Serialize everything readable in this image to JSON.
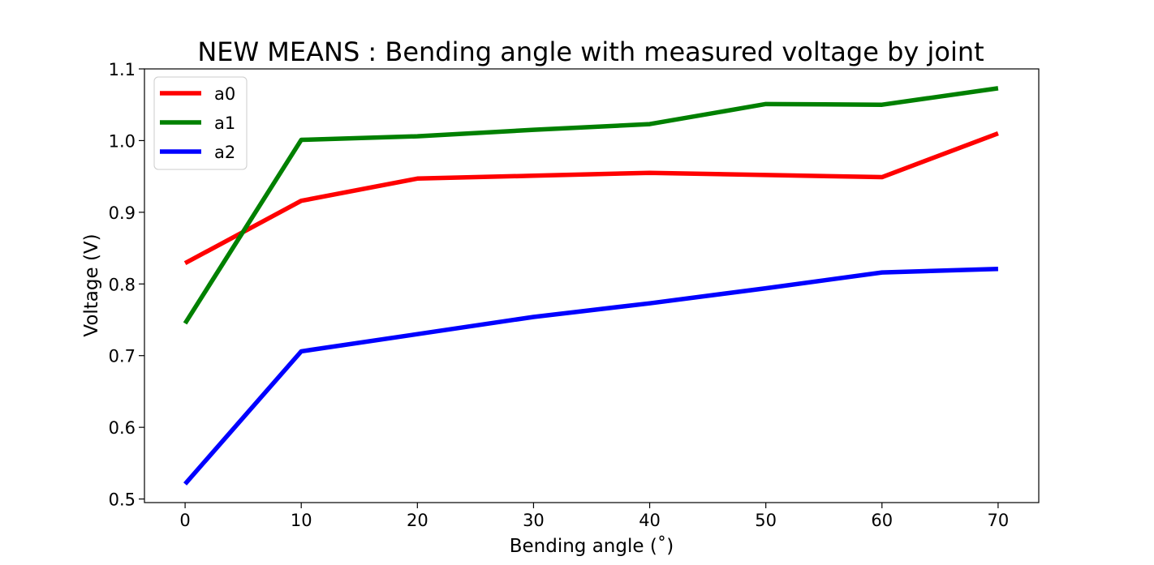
{
  "chart_data": {
    "type": "line",
    "title": "NEW MEANS : Bending angle with measured voltage by joint",
    "xlabel": "Bending angle ($^\\circ$)",
    "xlabel_display": "Bending angle (˚)",
    "ylabel": "Voltage (V)",
    "x": [
      0,
      10,
      20,
      30,
      40,
      50,
      60,
      70
    ],
    "xlim": [
      -3.5,
      73.5
    ],
    "ylim": [
      0.495,
      1.1
    ],
    "xticks": [
      0,
      10,
      20,
      30,
      40,
      50,
      60,
      70
    ],
    "yticks": [
      0.5,
      0.6,
      0.7,
      0.8,
      0.9,
      1.0,
      1.1
    ],
    "ytick_labels": [
      "0.5",
      "0.6",
      "0.7",
      "0.8",
      "0.9",
      "1.0",
      "1.1"
    ],
    "grid": false,
    "legend_position": "top-left",
    "series": [
      {
        "name": "a0",
        "color": "#ff0000",
        "values": [
          0.829,
          0.916,
          0.947,
          0.951,
          0.955,
          0.952,
          0.949,
          1.01
        ]
      },
      {
        "name": "a1",
        "color": "#008000",
        "values": [
          0.745,
          1.001,
          1.006,
          1.015,
          1.023,
          1.051,
          1.05,
          1.073
        ]
      },
      {
        "name": "a2",
        "color": "#0000ff",
        "values": [
          0.521,
          0.706,
          0.73,
          0.754,
          0.773,
          0.794,
          0.816,
          0.821
        ]
      }
    ]
  }
}
